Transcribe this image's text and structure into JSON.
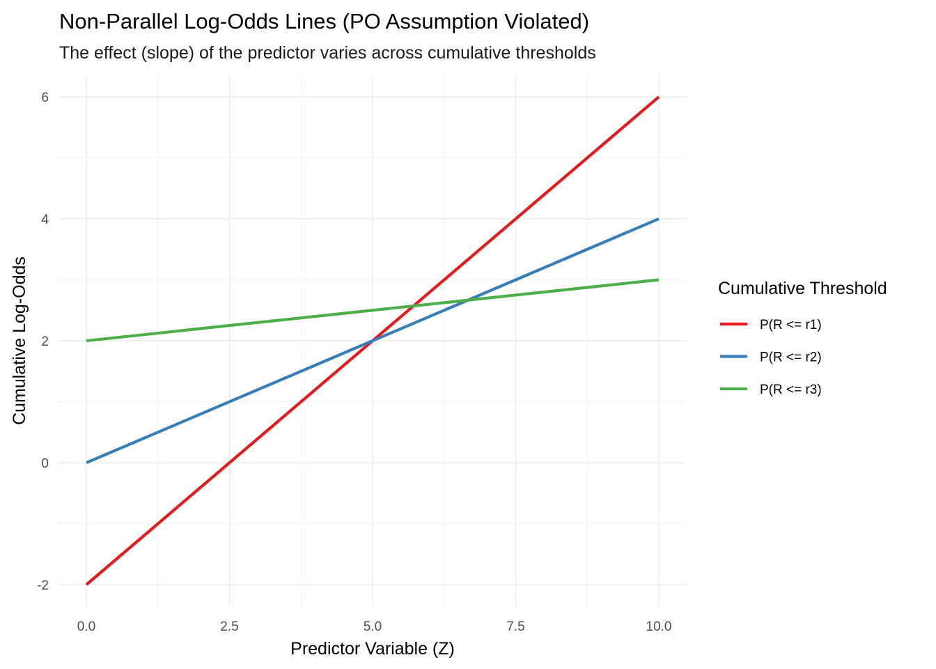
{
  "chart_data": {
    "type": "line",
    "title": "Non-Parallel Log-Odds Lines (PO Assumption Violated)",
    "subtitle": "The effect (slope) of the predictor varies across cumulative thresholds",
    "xlabel": "Predictor Variable (Z)",
    "ylabel": "Cumulative Log-Odds",
    "xlim": [
      0,
      10
    ],
    "ylim": [
      -2,
      6
    ],
    "x_ticks": [
      0,
      2.5,
      5,
      7.5,
      10
    ],
    "x_tick_labels": [
      "0.0",
      "2.5",
      "5.0",
      "7.5",
      "10.0"
    ],
    "y_ticks": [
      -2,
      0,
      2,
      4,
      6
    ],
    "y_tick_labels": [
      "-2",
      "0",
      "2",
      "4",
      "6"
    ],
    "grid": true,
    "legend": {
      "title": "Cumulative Threshold",
      "position": "right"
    },
    "series": [
      {
        "name": "P(R <= r1)",
        "color": "#e41a1c",
        "x": [
          0,
          10
        ],
        "y": [
          -2,
          6
        ]
      },
      {
        "name": "P(R <= r2)",
        "color": "#377eb8",
        "x": [
          0,
          10
        ],
        "y": [
          0,
          4
        ]
      },
      {
        "name": "P(R <= r3)",
        "color": "#4daf4a",
        "x": [
          0,
          10
        ],
        "y": [
          2,
          3
        ]
      }
    ]
  }
}
